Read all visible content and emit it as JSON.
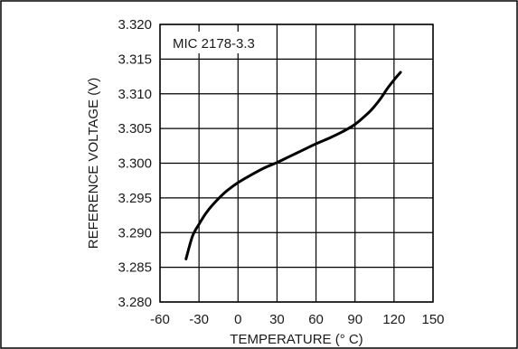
{
  "chart_data": {
    "type": "line",
    "title": "",
    "xlabel": "TEMPERATURE (° C)",
    "ylabel": "REFERENCE VOLTAGE (V)",
    "xlim": [
      -60,
      150
    ],
    "ylim": [
      3.28,
      3.32
    ],
    "x_ticks": [
      "-60",
      "-30",
      "0",
      "30",
      "60",
      "90",
      "120",
      "150"
    ],
    "y_ticks": [
      "3.280",
      "3.285",
      "3.290",
      "3.295",
      "3.300",
      "3.305",
      "3.310",
      "3.315",
      "3.320"
    ],
    "grid": true,
    "annotation": "MIC 2178-3.3",
    "series": [
      {
        "color": "#000000",
        "x": [
          -40,
          -35,
          -30,
          -25,
          -20,
          -10,
          0,
          10,
          20,
          30,
          40,
          50,
          60,
          70,
          80,
          90,
          100,
          105,
          110,
          115,
          120,
          125
        ],
        "y": [
          3.2862,
          3.2895,
          3.2912,
          3.2927,
          3.2939,
          3.2958,
          3.2972,
          3.2983,
          3.2993,
          3.3001,
          3.301,
          3.3019,
          3.3028,
          3.3036,
          3.3045,
          3.3056,
          3.3072,
          3.3082,
          3.3094,
          3.3108,
          3.312,
          3.3131
        ]
      }
    ]
  }
}
